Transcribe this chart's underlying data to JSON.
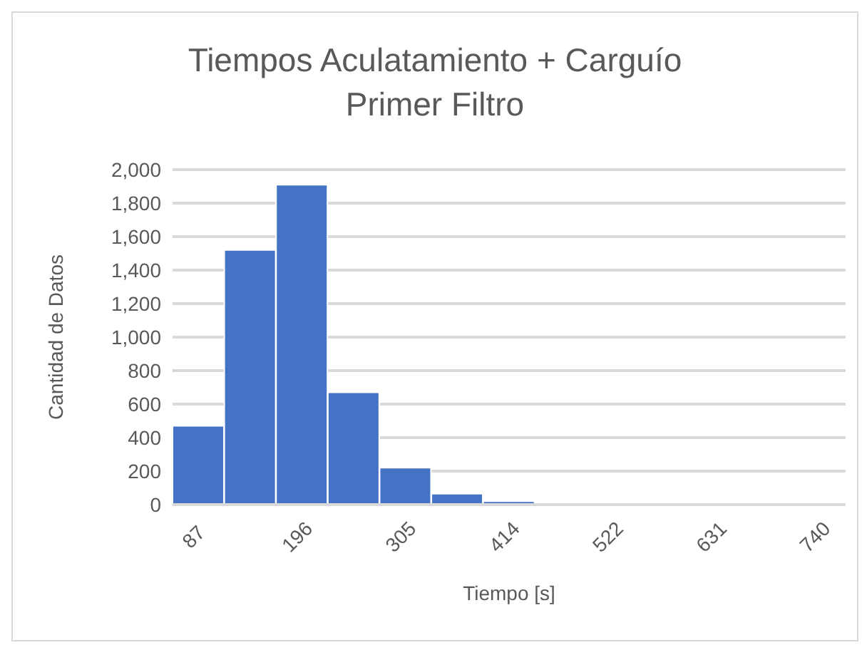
{
  "chart_data": {
    "type": "bar",
    "title": "Tiempos Aculatamiento + Carguío\nPrimer Filtro",
    "xlabel": "Tiempo [s]",
    "ylabel": "Cantidad de Datos",
    "categories": [
      "87",
      null,
      "196",
      null,
      "305",
      null,
      "414",
      null,
      "522",
      null,
      "631",
      null,
      "740"
    ],
    "values": [
      470,
      1520,
      1910,
      670,
      220,
      65,
      20,
      0,
      0,
      0,
      0,
      0,
      0
    ],
    "color": "#4472c4",
    "ylim": [
      0,
      2000
    ],
    "yticks": [
      0,
      200,
      400,
      600,
      800,
      {
        "value": 1000,
        "label": "1,000"
      },
      {
        "value": 1200,
        "label": "1,200"
      },
      {
        "value": 1400,
        "label": "1,400"
      },
      {
        "value": 1600,
        "label": "1,600"
      },
      {
        "value": 1800,
        "label": "1,800"
      },
      {
        "value": 2000,
        "label": "2,000"
      }
    ],
    "grid": "y"
  }
}
